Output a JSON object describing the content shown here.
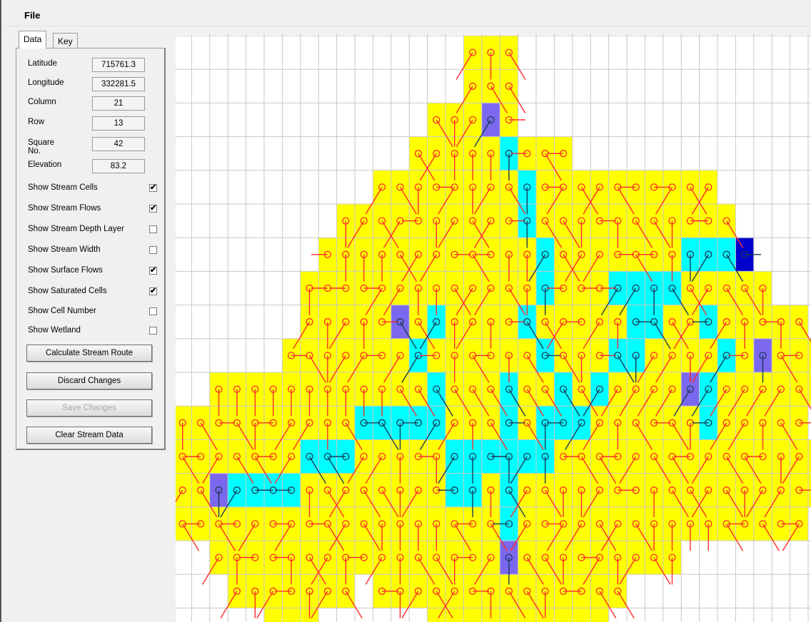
{
  "menu": {
    "file_label": "File"
  },
  "tabs": [
    {
      "label": "Data"
    },
    {
      "label": "Key"
    }
  ],
  "fields": [
    {
      "label": "Latitude",
      "value": "715761.3"
    },
    {
      "label": "Longitude",
      "value": "332281.5"
    },
    {
      "label": "Column",
      "value": "21"
    },
    {
      "label": "Row",
      "value": "13"
    },
    {
      "label": "Square No.",
      "value": "42"
    },
    {
      "label": "Elevation",
      "value": "83.2"
    }
  ],
  "checkboxes": [
    {
      "label": "Show Stream Cells",
      "checked": true
    },
    {
      "label": "Show Stream Flows",
      "checked": true
    },
    {
      "label": "Show Stream Depth Layer",
      "checked": false
    },
    {
      "label": "Show Stream Width",
      "checked": false
    },
    {
      "label": "Show Surface Flows",
      "checked": true
    },
    {
      "label": "Show Saturated Cells",
      "checked": true
    },
    {
      "label": "Show Cell Number",
      "checked": false
    },
    {
      "label": "Show Wetland",
      "checked": false
    }
  ],
  "buttons": [
    {
      "label": "Calculate Stream Route",
      "enabled": true
    },
    {
      "label": "Discard Changes",
      "enabled": true
    },
    {
      "label": "Save Changes",
      "enabled": false
    },
    {
      "label": "Clear Stream Data",
      "enabled": true
    }
  ],
  "map": {
    "colors": {
      "land": "#ffff00",
      "stream": "#00ffff",
      "saturated": "#7b68ee",
      "source": "#0000cd",
      "flow": "#ff2a2a",
      "stream_flow": "#1a3a5a",
      "grid": "#c8c8c8"
    },
    "row_spans": [
      [
        [
          16,
          18
        ]
      ],
      [
        [
          16,
          18
        ]
      ],
      [
        [
          14,
          18
        ]
      ],
      [
        [
          13,
          21
        ]
      ],
      [
        [
          11,
          23
        ],
        [
          24,
          29
        ]
      ],
      [
        [
          9,
          30
        ]
      ],
      [
        [
          8,
          31
        ]
      ],
      [
        [
          7,
          32
        ]
      ],
      [
        [
          7,
          34
        ]
      ],
      [
        [
          6,
          35
        ]
      ],
      [
        [
          2,
          35
        ]
      ],
      [
        [
          0,
          34
        ]
      ],
      [
        [
          0,
          35
        ]
      ],
      [
        [
          0,
          35
        ]
      ],
      [
        [
          0,
          34
        ]
      ],
      [
        [
          2,
          27
        ]
      ],
      [
        [
          3,
          9
        ],
        [
          11,
          24
        ]
      ],
      [
        [
          5,
          7
        ],
        [
          14,
          19
        ],
        [
          20,
          23
        ]
      ]
    ],
    "stream_cells": [
      [
        17,
        2
      ],
      [
        18,
        3
      ],
      [
        19,
        4
      ],
      [
        19,
        5
      ],
      [
        20,
        6
      ],
      [
        20,
        7
      ],
      [
        19,
        8
      ],
      [
        20,
        9
      ],
      [
        21,
        10
      ],
      [
        22,
        11
      ],
      [
        23,
        10
      ],
      [
        24,
        9
      ],
      [
        25,
        8
      ],
      [
        26,
        7
      ],
      [
        27,
        7
      ],
      [
        28,
        6
      ],
      [
        29,
        6
      ],
      [
        30,
        6
      ],
      [
        29,
        8
      ],
      [
        30,
        9
      ],
      [
        29,
        10
      ],
      [
        29,
        11
      ],
      [
        25,
        9
      ],
      [
        26,
        8
      ],
      [
        24,
        7
      ],
      [
        25,
        7
      ],
      [
        18,
        10
      ],
      [
        18,
        11
      ],
      [
        18,
        12
      ],
      [
        14,
        8
      ],
      [
        13,
        9
      ],
      [
        14,
        10
      ],
      [
        14,
        11
      ],
      [
        15,
        12
      ],
      [
        16,
        12
      ],
      [
        17,
        12
      ],
      [
        15,
        13
      ],
      [
        16,
        13
      ],
      [
        13,
        11
      ],
      [
        12,
        11
      ],
      [
        11,
        11
      ],
      [
        10,
        11
      ],
      [
        9,
        12
      ],
      [
        8,
        12
      ],
      [
        7,
        12
      ],
      [
        6,
        13
      ],
      [
        5,
        13
      ],
      [
        4,
        13
      ],
      [
        3,
        13
      ],
      [
        2,
        13
      ],
      [
        19,
        12
      ],
      [
        20,
        12
      ],
      [
        18,
        13
      ],
      [
        18,
        14
      ],
      [
        18,
        15
      ],
      [
        20,
        11
      ],
      [
        21,
        11
      ]
    ],
    "saturated_cells": [
      [
        17,
        2
      ],
      [
        12,
        8
      ],
      [
        2,
        13
      ],
      [
        18,
        15
      ],
      [
        28,
        10
      ],
      [
        32,
        9
      ]
    ],
    "source_cells": [
      [
        31,
        6
      ]
    ]
  }
}
